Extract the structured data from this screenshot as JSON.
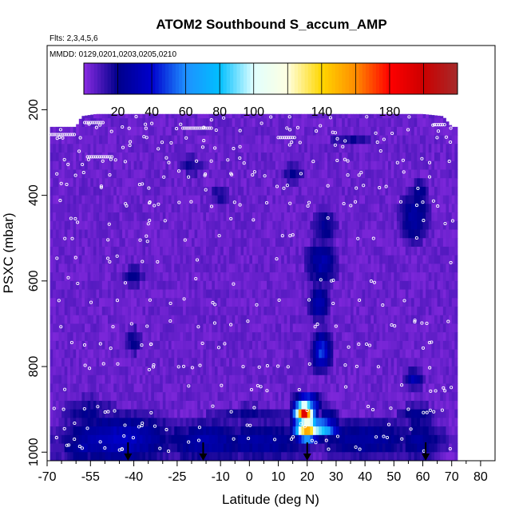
{
  "chart_data": {
    "type": "heatmap",
    "title": "ATOM2 Southbound S_accum_AMP",
    "subtitle_flights": "Flts: 2,3,4,5,6",
    "subtitle_dates": "MMDD: 0129,0201,0203,0205,0210",
    "xlabel": "Latitude (deg N)",
    "ylabel": "PSXC (mbar)",
    "xlim": [
      -70,
      85
    ],
    "ylim": [
      1020,
      50
    ],
    "y_reversed": true,
    "x_ticks": [
      -70,
      -55,
      -40,
      -25,
      -10,
      0,
      10,
      20,
      30,
      40,
      50,
      60,
      70,
      80
    ],
    "x_tick_labels": [
      "-70",
      "-55",
      "-40",
      "-25",
      "-10",
      "0",
      "10",
      "20",
      "30",
      "40",
      "50",
      "60",
      "70",
      "80"
    ],
    "x_minor_ticks": [
      -65,
      -60,
      -50,
      -45,
      -35,
      -30,
      -20,
      -15,
      -5,
      5,
      15,
      25,
      35,
      45,
      55,
      65,
      75
    ],
    "y_ticks": [
      200,
      400,
      600,
      800,
      1000
    ],
    "y_tick_labels": [
      "200",
      "400",
      "600",
      "800",
      "1000"
    ],
    "colorbar": {
      "min": 0,
      "max": 220,
      "tick_values": [
        20,
        40,
        60,
        80,
        100,
        140,
        180
      ],
      "tick_labels": [
        "20",
        "40",
        "60",
        "80",
        "100",
        "140",
        "180"
      ],
      "stops": [
        {
          "v": 0,
          "c": "#8a2be2"
        },
        {
          "v": 20,
          "c": "#00008b"
        },
        {
          "v": 40,
          "c": "#0000cd"
        },
        {
          "v": 60,
          "c": "#1e90ff"
        },
        {
          "v": 80,
          "c": "#00bfff"
        },
        {
          "v": 100,
          "c": "#e0ffff"
        },
        {
          "v": 120,
          "c": "#ffffe0"
        },
        {
          "v": 140,
          "c": "#ffd700"
        },
        {
          "v": 160,
          "c": "#ff8c00"
        },
        {
          "v": 180,
          "c": "#ff0000"
        },
        {
          "v": 200,
          "c": "#cc0000"
        },
        {
          "v": 220,
          "c": "#a52a2a"
        }
      ]
    },
    "domain": {
      "lat_min": -69,
      "lat_max": 72
    },
    "top_pressure_by_lat": [
      [
        -69,
        240
      ],
      [
        -60,
        240
      ],
      [
        -58,
        215
      ],
      [
        -53,
        210
      ],
      [
        -30,
        210
      ],
      [
        -15,
        210
      ],
      [
        0,
        210
      ],
      [
        20,
        210
      ],
      [
        40,
        210
      ],
      [
        60,
        210
      ],
      [
        67,
        215
      ],
      [
        70,
        240
      ],
      [
        72,
        240
      ]
    ],
    "background_value": 5,
    "features": [
      {
        "lat": -45,
        "p": 970,
        "dlat": 18,
        "dp": 55,
        "v": 32
      },
      {
        "lat": -55,
        "p": 985,
        "dlat": 12,
        "dp": 45,
        "v": 25
      },
      {
        "lat": -30,
        "p": 965,
        "dlat": 14,
        "dp": 40,
        "v": 18
      },
      {
        "lat": -15,
        "p": 975,
        "dlat": 15,
        "dp": 45,
        "v": 25
      },
      {
        "lat": 3,
        "p": 975,
        "dlat": 20,
        "dp": 45,
        "v": 22
      },
      {
        "lat": 40,
        "p": 970,
        "dlat": 18,
        "dp": 45,
        "v": 22
      },
      {
        "lat": 58,
        "p": 975,
        "dlat": 10,
        "dp": 40,
        "v": 20
      },
      {
        "lat": -55,
        "p": 910,
        "dlat": 10,
        "dp": 40,
        "v": 15
      },
      {
        "lat": 0,
        "p": 915,
        "dlat": 15,
        "dp": 25,
        "v": 14
      },
      {
        "lat": 58,
        "p": 915,
        "dlat": 6,
        "dp": 25,
        "v": 20
      },
      {
        "lat": 20,
        "p": 945,
        "dlat": 4,
        "dp": 25,
        "v": 155
      },
      {
        "lat": 23,
        "p": 945,
        "dlat": 7,
        "dp": 20,
        "v": 95
      },
      {
        "lat": 19,
        "p": 910,
        "dlat": 3,
        "dp": 25,
        "v": 190
      },
      {
        "lat": 20,
        "p": 885,
        "dlat": 4,
        "dp": 20,
        "v": 65
      },
      {
        "lat": 27,
        "p": 920,
        "dlat": 3,
        "dp": 25,
        "v": 25
      },
      {
        "lat": 25,
        "p": 765,
        "dlat": 3,
        "dp": 40,
        "v": 45
      },
      {
        "lat": 24,
        "p": 650,
        "dlat": 3,
        "dp": 40,
        "v": 28
      },
      {
        "lat": 25,
        "p": 560,
        "dlat": 5,
        "dp": 50,
        "v": 25
      },
      {
        "lat": 26,
        "p": 470,
        "dlat": 4,
        "dp": 40,
        "v": 18
      },
      {
        "lat": 57,
        "p": 830,
        "dlat": 3,
        "dp": 20,
        "v": 28
      },
      {
        "lat": 57,
        "p": 450,
        "dlat": 5,
        "dp": 60,
        "v": 22
      },
      {
        "lat": 59,
        "p": 390,
        "dlat": 3,
        "dp": 25,
        "v": 18
      },
      {
        "lat": -40,
        "p": 740,
        "dlat": 3,
        "dp": 30,
        "v": 16
      },
      {
        "lat": -40,
        "p": 590,
        "dlat": 4,
        "dp": 25,
        "v": 14
      },
      {
        "lat": -20,
        "p": 330,
        "dlat": 5,
        "dp": 25,
        "v": 12
      },
      {
        "lat": -10,
        "p": 400,
        "dlat": 4,
        "dp": 25,
        "v": 12
      },
      {
        "lat": 15,
        "p": 350,
        "dlat": 4,
        "dp": 25,
        "v": 14
      },
      {
        "lat": 35,
        "p": 270,
        "dlat": 8,
        "dp": 20,
        "v": 12
      }
    ],
    "arrow_markers_lat": [
      -42,
      -16,
      20,
      61
    ]
  }
}
